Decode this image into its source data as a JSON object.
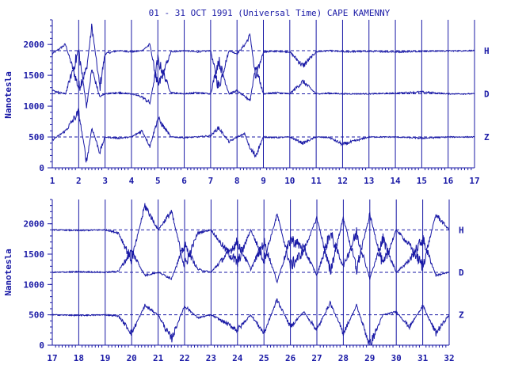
{
  "title": "01 - 31 OCT 1991 (Universal Time) CAPE KAMENNY",
  "colors": {
    "ink": "#1a1aa6",
    "background": "#ffffff"
  },
  "chart_data": [
    {
      "type": "line",
      "title": "01 - 31 OCT 1991 (Universal Time) CAPE KAMENNY",
      "ylabel": "Nanotesla",
      "xlabel": "",
      "x_ticks": [
        "1",
        "2",
        "3",
        "4",
        "5",
        "6",
        "7",
        "8",
        "9",
        "10",
        "11",
        "12",
        "13",
        "14",
        "15",
        "16",
        "17"
      ],
      "xlim": [
        1,
        17
      ],
      "ylim": [
        0,
        2400
      ],
      "y_ticks": [
        "0",
        "500",
        "1000",
        "1500",
        "2000"
      ],
      "y_tick_values": [
        0,
        500,
        1000,
        1500,
        2000
      ],
      "grid": "vertical lines at each day",
      "series": [
        {
          "name": "H",
          "baseline": 1900,
          "x": [
            1,
            1.5,
            2,
            2.3,
            2.5,
            2.8,
            3,
            3.5,
            4,
            4.4,
            4.7,
            5,
            5.5,
            6,
            6.5,
            7,
            7.3,
            7.7,
            8,
            8.3,
            8.5,
            8.7,
            9,
            9.5,
            10,
            10.5,
            11,
            11.5,
            12,
            13,
            14,
            15,
            16,
            17
          ],
          "y": [
            1850,
            2000,
            1300,
            1600,
            2300,
            1300,
            1850,
            1900,
            1880,
            1900,
            2000,
            1300,
            1880,
            1900,
            1880,
            1900,
            1300,
            1900,
            1850,
            2000,
            2150,
            1450,
            1880,
            1890,
            1880,
            1650,
            1880,
            1900,
            1880,
            1890,
            1880,
            1890,
            1895,
            1900
          ]
        },
        {
          "name": "D",
          "baseline": 1200,
          "x": [
            1,
            1.5,
            2,
            2.3,
            2.5,
            2.8,
            3,
            3.5,
            4,
            4.4,
            4.7,
            5,
            5.5,
            6,
            6.5,
            7,
            7.3,
            7.7,
            8,
            8.3,
            8.5,
            8.7,
            9,
            9.5,
            10,
            10.5,
            11,
            11.5,
            12,
            13,
            14,
            15,
            16,
            17
          ],
          "y": [
            1250,
            1200,
            1900,
            1000,
            1600,
            1150,
            1200,
            1220,
            1200,
            1150,
            1050,
            1750,
            1220,
            1200,
            1220,
            1200,
            1750,
            1200,
            1250,
            1150,
            1100,
            1650,
            1200,
            1220,
            1200,
            1400,
            1200,
            1210,
            1200,
            1200,
            1210,
            1230,
            1200,
            1200
          ]
        },
        {
          "name": "Z",
          "baseline": 500,
          "x": [
            1,
            1.5,
            2,
            2.3,
            2.5,
            2.8,
            3,
            3.5,
            4,
            4.4,
            4.7,
            5,
            5.5,
            6,
            6.5,
            7,
            7.3,
            7.7,
            8,
            8.3,
            8.5,
            8.7,
            9,
            9.5,
            10,
            10.5,
            11,
            11.5,
            12,
            13,
            14,
            15,
            16,
            17
          ],
          "y": [
            450,
            600,
            900,
            100,
            650,
            250,
            500,
            480,
            500,
            600,
            350,
            800,
            500,
            490,
            500,
            520,
            650,
            420,
            500,
            550,
            300,
            200,
            500,
            490,
            500,
            400,
            500,
            490,
            380,
            500,
            500,
            480,
            500,
            500
          ]
        }
      ]
    },
    {
      "type": "line",
      "title": "",
      "ylabel": "Nanotesla",
      "xlabel": "",
      "x_ticks": [
        "17",
        "18",
        "19",
        "20",
        "21",
        "22",
        "23",
        "24",
        "25",
        "26",
        "27",
        "28",
        "29",
        "30",
        "31",
        "32"
      ],
      "xlim": [
        17,
        32
      ],
      "ylim": [
        0,
        2400
      ],
      "y_ticks": [
        "0",
        "500",
        "1000",
        "1500",
        "2000"
      ],
      "y_tick_values": [
        0,
        500,
        1000,
        1500,
        2000
      ],
      "grid": "vertical lines at each day",
      "series": [
        {
          "name": "H",
          "baseline": 1900,
          "x": [
            17,
            18,
            19,
            19.5,
            20,
            20.5,
            21,
            21.5,
            22,
            22.5,
            23,
            23.5,
            24,
            24.5,
            25,
            25.5,
            26,
            26.5,
            27,
            27.5,
            28,
            28.5,
            29,
            29.5,
            30,
            30.5,
            31,
            31.5,
            32
          ],
          "y": [
            1900,
            1890,
            1900,
            1850,
            1400,
            2300,
            1900,
            2200,
            1300,
            1850,
            1900,
            1600,
            1350,
            1900,
            1400,
            2150,
            1300,
            1550,
            2100,
            1200,
            2100,
            1250,
            2150,
            1300,
            1900,
            1650,
            1300,
            2150,
            1900
          ]
        },
        {
          "name": "D",
          "baseline": 1200,
          "x": [
            17,
            18,
            19,
            19.5,
            20,
            20.5,
            21,
            21.5,
            22,
            22.5,
            23,
            23.5,
            24,
            24.5,
            25,
            25.5,
            26,
            26.5,
            27,
            27.5,
            28,
            28.5,
            29,
            29.5,
            30,
            30.5,
            31,
            31.5,
            32
          ],
          "y": [
            1200,
            1210,
            1200,
            1220,
            1550,
            1150,
            1200,
            1100,
            1650,
            1250,
            1200,
            1450,
            1700,
            1250,
            1700,
            1050,
            1750,
            1600,
            1150,
            1850,
            1300,
            1850,
            1100,
            1750,
            1200,
            1400,
            1750,
            1150,
            1200
          ]
        },
        {
          "name": "Z",
          "baseline": 500,
          "x": [
            17,
            18,
            19,
            19.5,
            20,
            20.5,
            21,
            21.5,
            22,
            22.5,
            23,
            23.5,
            24,
            24.5,
            25,
            25.5,
            26,
            26.5,
            27,
            27.5,
            28,
            28.5,
            29,
            29.5,
            30,
            30.5,
            31,
            31.5,
            32
          ],
          "y": [
            500,
            490,
            500,
            480,
            200,
            650,
            500,
            100,
            650,
            450,
            500,
            380,
            250,
            500,
            200,
            750,
            300,
            550,
            250,
            700,
            200,
            650,
            0,
            500,
            550,
            300,
            650,
            200,
            500
          ]
        }
      ]
    }
  ]
}
